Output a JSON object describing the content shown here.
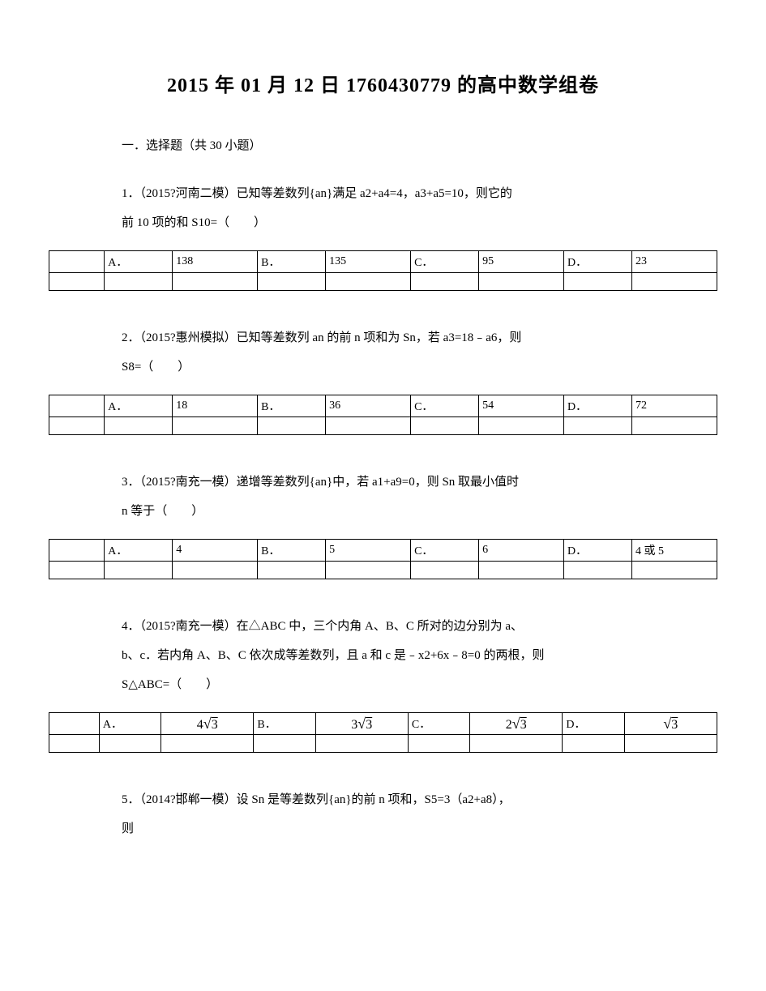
{
  "page": {
    "title": "2015 年 01 月 12 日 1760430779 的高中数学组卷",
    "section_header": "一．选择题（共 30 小题）"
  },
  "questions": [
    {
      "text_line1": "1．（2015?河南二模）已知等差数列{an}满足 a2+a4=4，a3+a5=10，则它的",
      "text_line2": "前 10 项的和 S10=（　　）",
      "options": {
        "A": "138",
        "B": "135",
        "C": "95",
        "D": "23"
      },
      "wide": false
    },
    {
      "text_line1": "2．（2015?惠州模拟）已知等差数列 an 的前 n 项和为 Sn，若 a3=18﹣a6，则",
      "text_line2": "S8=（　　）",
      "options": {
        "A": "18",
        "B": "36",
        "C": "54",
        "D": "72"
      },
      "wide": false
    },
    {
      "text_line1": "3．（2015?南充一模）递增等差数列{an}中，若 a1+a9=0，则 Sn 取最小值时",
      "text_line2": "n 等于（　　）",
      "options": {
        "A": "4",
        "B": "5",
        "C": "6",
        "D": "4 或 5"
      },
      "wide": false
    },
    {
      "text_line1": "4．（2015?南充一模）在△ABC 中，三个内角 A、B、C 所对的边分别为 a、",
      "text_line2": "b、c．若内角 A、B、C 依次成等差数列，且 a 和 c 是﹣x2+6x﹣8=0 的两根，则",
      "text_line3": "S△ABC=（　　）",
      "options_math": {
        "A": {
          "coef": "4",
          "rad": "3"
        },
        "B": {
          "coef": "3",
          "rad": "3"
        },
        "C": {
          "coef": "2",
          "rad": "3"
        },
        "D": {
          "coef": "",
          "rad": "3"
        }
      },
      "wide": true
    },
    {
      "text_line1": "5．（2014?邯郸一模）设 Sn 是等差数列{an}的前 n 项和，S5=3（a2+a8），",
      "text_line2": "则"
    }
  ],
  "labels": {
    "A": "A．",
    "B": "B．",
    "C": "C．",
    "D": "D．"
  },
  "style": {
    "background_color": "#ffffff",
    "text_color": "#000000",
    "border_color": "#000000",
    "title_fontsize": 24,
    "body_fontsize": 15,
    "table_fontsize": 14
  }
}
